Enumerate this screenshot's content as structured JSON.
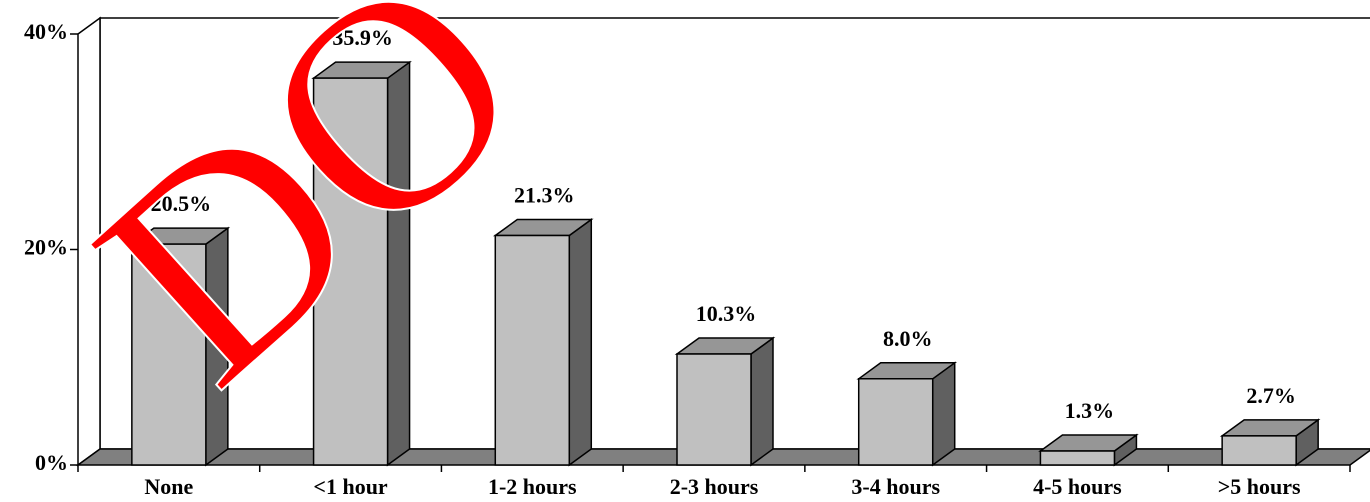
{
  "chart_data": {
    "type": "bar3d",
    "categories": [
      "None",
      "<1 hour",
      "1-2 hours",
      "2-3 hours",
      "3-4 hours",
      "4-5 hours",
      ">5 hours"
    ],
    "values": [
      20.5,
      35.9,
      21.3,
      10.3,
      8.0,
      1.3,
      2.7
    ],
    "value_labels": [
      "20.5%",
      "35.9%",
      "21.3%",
      "10.3%",
      "8.0%",
      "1.3%",
      "2.7%"
    ],
    "colors": {
      "front": "#c0c0c0",
      "top": "#969696",
      "side": "#606060",
      "floor": "#808080"
    },
    "ylim": [
      0,
      40
    ],
    "yticks": [
      {
        "value": 0,
        "label": "0%"
      },
      {
        "value": 20,
        "label": "20%"
      },
      {
        "value": 40,
        "label": "40%"
      }
    ],
    "grid": false,
    "watermark": "DO"
  }
}
